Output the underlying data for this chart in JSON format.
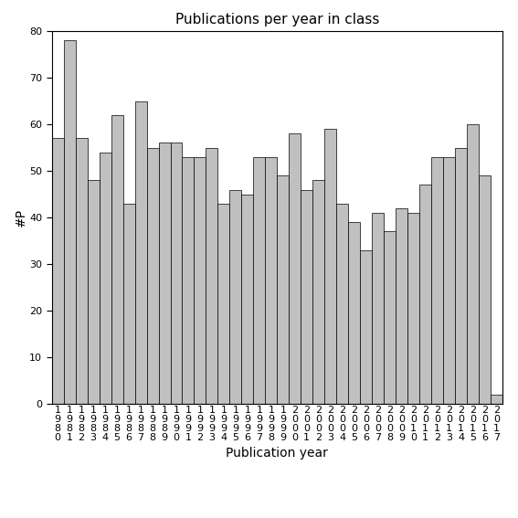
{
  "title": "Publications per year in class",
  "xlabel": "Publication year",
  "ylabel": "#P",
  "years": [
    "1980",
    "1981",
    "1982",
    "1983",
    "1984",
    "1985",
    "1986",
    "1987",
    "1988",
    "1989",
    "1990",
    "1991",
    "1992",
    "1993",
    "1994",
    "1995",
    "1996",
    "1997",
    "1998",
    "1999",
    "2000",
    "2001",
    "2002",
    "2003",
    "2004",
    "2005",
    "2006",
    "2007",
    "2008",
    "2009",
    "2010",
    "2011",
    "2012",
    "2013",
    "2014",
    "2015",
    "2016",
    "2017"
  ],
  "values": [
    57,
    78,
    57,
    48,
    54,
    62,
    43,
    65,
    55,
    56,
    56,
    53,
    53,
    55,
    43,
    46,
    45,
    53,
    53,
    49,
    58,
    46,
    48,
    59,
    43,
    39,
    33,
    41,
    37,
    42,
    41,
    47,
    53,
    53,
    55,
    60,
    49,
    2
  ],
  "bar_color": "#c0c0c0",
  "bar_edgecolor": "#000000",
  "ylim": [
    0,
    80
  ],
  "yticks": [
    0,
    10,
    20,
    30,
    40,
    50,
    60,
    70,
    80
  ],
  "background_color": "#ffffff",
  "title_fontsize": 11,
  "axis_label_fontsize": 10,
  "tick_fontsize": 8
}
